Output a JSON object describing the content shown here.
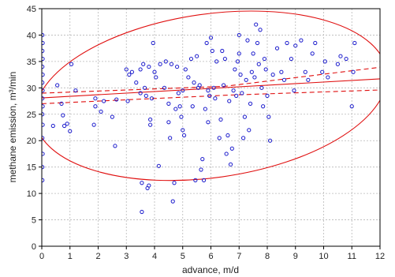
{
  "chart_data": {
    "type": "scatter",
    "title": "",
    "xlabel": "advance, m/d",
    "ylabel": "methane emission, m³/min",
    "xlim": [
      0,
      12
    ],
    "ylim": [
      0,
      45
    ],
    "x_ticks": [
      0,
      1,
      2,
      3,
      4,
      5,
      6,
      7,
      8,
      9,
      10,
      11,
      12
    ],
    "y_ticks": [
      0,
      5,
      10,
      15,
      20,
      25,
      30,
      35,
      40,
      45
    ],
    "grid": true,
    "colors": {
      "points": "#1a1acc",
      "fit": "#e01010",
      "frame": "#000000",
      "grid": "#b8b8b8"
    },
    "points": [
      [
        0.02,
        12.5
      ],
      [
        0.02,
        15.0
      ],
      [
        0.03,
        17.5
      ],
      [
        0.02,
        20.5
      ],
      [
        0.03,
        23.0
      ],
      [
        0.02,
        25.0
      ],
      [
        0.03,
        26.5
      ],
      [
        0.02,
        28.0
      ],
      [
        0.03,
        29.5
      ],
      [
        0.02,
        31.0
      ],
      [
        0.03,
        32.5
      ],
      [
        0.02,
        34.0
      ],
      [
        0.03,
        35.5
      ],
      [
        0.02,
        37.0
      ],
      [
        0.03,
        38.5
      ],
      [
        0.02,
        40.0
      ],
      [
        0.4,
        22.8
      ],
      [
        0.55,
        30.5
      ],
      [
        0.7,
        27.0
      ],
      [
        0.75,
        24.8
      ],
      [
        0.8,
        22.8
      ],
      [
        0.9,
        23.2
      ],
      [
        1.0,
        21.8
      ],
      [
        1.05,
        34.5
      ],
      [
        1.2,
        29.5
      ],
      [
        1.85,
        23.0
      ],
      [
        1.9,
        26.5
      ],
      [
        1.9,
        28.0
      ],
      [
        2.1,
        25.5
      ],
      [
        2.2,
        27.5
      ],
      [
        2.5,
        24.5
      ],
      [
        2.6,
        19.0
      ],
      [
        2.65,
        27.8
      ],
      [
        3.0,
        33.5
      ],
      [
        3.05,
        27.5
      ],
      [
        3.1,
        32.5
      ],
      [
        3.2,
        33.0
      ],
      [
        3.35,
        31.0
      ],
      [
        3.5,
        29.0
      ],
      [
        3.5,
        33.5
      ],
      [
        3.55,
        12.0
      ],
      [
        3.55,
        6.5
      ],
      [
        3.6,
        34.5
      ],
      [
        3.65,
        30.0
      ],
      [
        3.7,
        28.5
      ],
      [
        3.75,
        11.0
      ],
      [
        3.8,
        34.0
      ],
      [
        3.8,
        11.5
      ],
      [
        3.85,
        24.0
      ],
      [
        3.85,
        23.0
      ],
      [
        3.9,
        28.0
      ],
      [
        3.95,
        38.5
      ],
      [
        4.0,
        33.0
      ],
      [
        4.05,
        32.0
      ],
      [
        4.15,
        15.2
      ],
      [
        4.2,
        34.5
      ],
      [
        4.35,
        30.0
      ],
      [
        4.4,
        35.0
      ],
      [
        4.5,
        27.0
      ],
      [
        4.5,
        23.5
      ],
      [
        4.55,
        20.5
      ],
      [
        4.6,
        34.5
      ],
      [
        4.65,
        8.5
      ],
      [
        4.7,
        12.0
      ],
      [
        4.75,
        26.0
      ],
      [
        4.8,
        34.0
      ],
      [
        4.85,
        29.0
      ],
      [
        4.9,
        26.5
      ],
      [
        4.95,
        24.5
      ],
      [
        5.0,
        22.0
      ],
      [
        5.0,
        29.5
      ],
      [
        5.05,
        21.0
      ],
      [
        5.1,
        33.5
      ],
      [
        5.2,
        32.0
      ],
      [
        5.3,
        35.5
      ],
      [
        5.35,
        26.5
      ],
      [
        5.4,
        31.0
      ],
      [
        5.45,
        12.5
      ],
      [
        5.5,
        36.0
      ],
      [
        5.55,
        30.0
      ],
      [
        5.6,
        30.5
      ],
      [
        5.65,
        14.5
      ],
      [
        5.7,
        16.5
      ],
      [
        5.75,
        12.5
      ],
      [
        5.8,
        26.0
      ],
      [
        5.85,
        38.5
      ],
      [
        5.9,
        23.5
      ],
      [
        5.9,
        29.5
      ],
      [
        5.95,
        28.5
      ],
      [
        6.0,
        39.5
      ],
      [
        6.05,
        37.0
      ],
      [
        6.1,
        30.0
      ],
      [
        6.15,
        28.0
      ],
      [
        6.2,
        35.0
      ],
      [
        6.3,
        20.5
      ],
      [
        6.35,
        24.0
      ],
      [
        6.4,
        37.0
      ],
      [
        6.45,
        30.5
      ],
      [
        6.5,
        35.5
      ],
      [
        6.55,
        17.5
      ],
      [
        6.6,
        21.0
      ],
      [
        6.65,
        27.5
      ],
      [
        6.7,
        15.5
      ],
      [
        6.75,
        18.5
      ],
      [
        6.8,
        29.5
      ],
      [
        6.85,
        33.5
      ],
      [
        6.9,
        28.5
      ],
      [
        6.95,
        35.0
      ],
      [
        7.0,
        40.0
      ],
      [
        7.0,
        36.5
      ],
      [
        7.05,
        32.5
      ],
      [
        7.1,
        29.0
      ],
      [
        7.15,
        20.5
      ],
      [
        7.2,
        24.5
      ],
      [
        7.25,
        31.5
      ],
      [
        7.3,
        39.0
      ],
      [
        7.35,
        22.0
      ],
      [
        7.4,
        27.0
      ],
      [
        7.45,
        33.0
      ],
      [
        7.5,
        36.5
      ],
      [
        7.55,
        32.0
      ],
      [
        7.6,
        42.0
      ],
      [
        7.65,
        38.5
      ],
      [
        7.7,
        34.5
      ],
      [
        7.75,
        41.0
      ],
      [
        7.8,
        30.0
      ],
      [
        7.85,
        26.5
      ],
      [
        7.9,
        35.5
      ],
      [
        7.95,
        33.5
      ],
      [
        8.0,
        28.5
      ],
      [
        8.05,
        24.5
      ],
      [
        8.1,
        20.0
      ],
      [
        8.2,
        32.5
      ],
      [
        8.35,
        37.5
      ],
      [
        8.5,
        33.0
      ],
      [
        8.6,
        31.5
      ],
      [
        8.7,
        38.5
      ],
      [
        8.85,
        35.5
      ],
      [
        8.95,
        29.5
      ],
      [
        9.0,
        38.0
      ],
      [
        9.2,
        39.0
      ],
      [
        9.35,
        33.0
      ],
      [
        9.45,
        31.5
      ],
      [
        9.6,
        36.5
      ],
      [
        9.7,
        38.5
      ],
      [
        9.95,
        33.0
      ],
      [
        10.05,
        35.0
      ],
      [
        10.15,
        32.0
      ],
      [
        10.5,
        34.5
      ],
      [
        10.6,
        36.0
      ],
      [
        10.8,
        35.5
      ],
      [
        11.0,
        26.5
      ],
      [
        11.05,
        33.0
      ],
      [
        11.1,
        38.5
      ]
    ],
    "regression": {
      "x": [
        0,
        12
      ],
      "y": [
        28.1,
        31.7
      ]
    },
    "confidence_band": {
      "upper": {
        "x": [
          0,
          6.5,
          12
        ],
        "y": [
          29.0,
          30.3,
          33.9
        ]
      },
      "lower": {
        "x": [
          0,
          6.5,
          12
        ],
        "y": [
          27.0,
          28.6,
          29.6
        ]
      }
    },
    "prediction_ellipse": {
      "cx": 6.0,
      "cy": 28.5,
      "rx": 6.3,
      "ry": 15.5,
      "rotation_deg": -8
    }
  }
}
